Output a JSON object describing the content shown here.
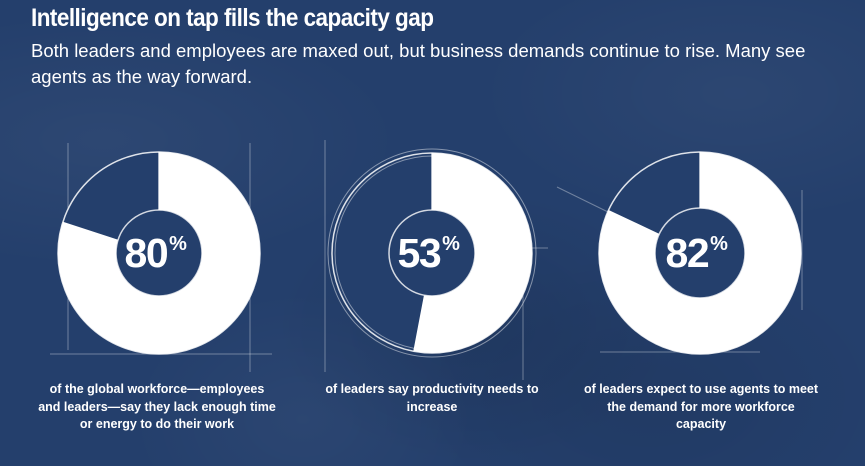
{
  "header": {
    "title": "Intelligence on tap fills the capacity gap",
    "subtitle": "Both leaders and employees are maxed out, but business demands continue to rise. Many see agents as the way forward."
  },
  "colors": {
    "background": "#243f6c",
    "fill": "#ffffff",
    "remainder": "#243f6c",
    "ring_outline": "#ffffff"
  },
  "chart_data": [
    {
      "type": "pie",
      "variant": "donut",
      "percent": 80,
      "value_label": "80",
      "unit_label": "%",
      "caption": "of the global workforce—employees and leaders—say they lack enough time or energy to do their work"
    },
    {
      "type": "pie",
      "variant": "donut",
      "percent": 53,
      "value_label": "53",
      "unit_label": "%",
      "caption": "of leaders say productivity needs to increase"
    },
    {
      "type": "pie",
      "variant": "donut",
      "percent": 82,
      "value_label": "82",
      "unit_label": "%",
      "caption": "of leaders expect to use agents to meet the demand for more workforce capacity"
    }
  ]
}
